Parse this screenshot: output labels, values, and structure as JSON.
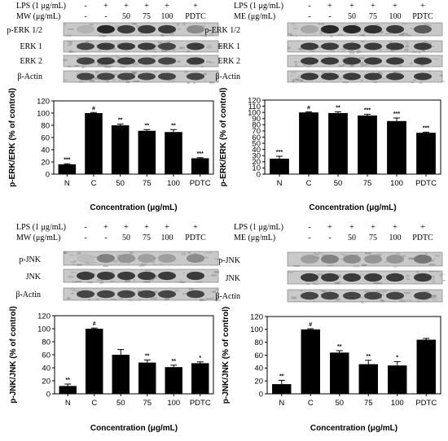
{
  "panels": [
    {
      "id": "erk-mw",
      "header": [
        {
          "label": "LPS (1 μg/mL)",
          "cells": [
            "-",
            "+",
            "+",
            "+",
            "+",
            "+"
          ]
        },
        {
          "label": "MW (μg/mL)",
          "cells": [
            "-",
            "-",
            "50",
            "75",
            "100",
            "PDTC"
          ]
        }
      ],
      "blots": [
        "p-ERK 1/2",
        "ERK 1",
        "ERK 2",
        "β-Actin"
      ],
      "chart_data": {
        "type": "bar",
        "categories": [
          "N",
          "C",
          "50",
          "75",
          "100",
          "PDTC"
        ],
        "values": [
          16,
          100,
          80,
          71,
          69,
          26
        ],
        "errors": [
          1,
          1,
          2,
          2,
          4,
          1
        ],
        "significance": [
          "***",
          "#",
          "**",
          "**",
          "**",
          "***"
        ],
        "xlabel": "Concentration (μg/mL)",
        "ylabel": "p-ERK/ERK (% of control)",
        "ylim": [
          0,
          120
        ],
        "yticks": [
          0,
          20,
          40,
          60,
          80,
          100,
          120
        ]
      }
    },
    {
      "id": "erk-me",
      "header": [
        {
          "label": "LPS (1 μg/mL)",
          "cells": [
            "-",
            "+",
            "+",
            "+",
            "+",
            "+"
          ]
        },
        {
          "label": "ME (μg/mL)",
          "cells": [
            "-",
            "-",
            "50",
            "75",
            "100",
            "PDTC"
          ]
        }
      ],
      "blots": [
        "p-ERK 1/2",
        "ERK 1",
        "ERK 2",
        "β-Actin"
      ],
      "chart_data": {
        "type": "bar",
        "categories": [
          "N",
          "C",
          "50",
          "75",
          "100",
          "PDTC"
        ],
        "values": [
          25,
          100,
          99,
          95,
          86,
          67
        ],
        "errors": [
          4,
          1,
          2,
          2,
          5,
          1
        ],
        "significance": [
          "***",
          "#",
          "**",
          "***",
          "***",
          "***"
        ],
        "xlabel": "Concentration (μg/mL)",
        "ylabel": "p-ERK/ERK (% of control)",
        "ylim": [
          0,
          120
        ],
        "yticks": [
          0,
          10,
          20,
          30,
          40,
          50,
          60,
          70,
          80,
          90,
          100,
          110,
          120
        ]
      }
    },
    {
      "id": "jnk-mw",
      "header": [
        {
          "label": "LPS (1 μg/mL)",
          "cells": [
            "-",
            "+",
            "+",
            "+",
            "+",
            "+"
          ]
        },
        {
          "label": "MW (μg/mL)",
          "cells": [
            "-",
            "-",
            "50",
            "75",
            "100",
            "PDTC"
          ]
        }
      ],
      "blots": [
        "p-JNK",
        "JNK",
        "β-Actin"
      ],
      "chart_data": {
        "type": "bar",
        "categories": [
          "N",
          "C",
          "50",
          "75",
          "100",
          "PDTC"
        ],
        "values": [
          12,
          100,
          60,
          48,
          41,
          47
        ],
        "errors": [
          3,
          1,
          8,
          4,
          3,
          2
        ],
        "significance": [
          "**",
          "#",
          "",
          "**",
          "**",
          "*"
        ],
        "xlabel": "Concentration (μg/mL)",
        "ylabel": "p-JNK/JNK (% of control)",
        "ylim": [
          0,
          120
        ],
        "yticks": [
          0,
          20,
          40,
          60,
          80,
          100,
          120
        ]
      }
    },
    {
      "id": "jnk-me",
      "header": [
        {
          "label": "LPS (1 μg/mL)",
          "cells": [
            "-",
            "+",
            "+",
            "+",
            "+",
            "+"
          ]
        },
        {
          "label": "ME (μg/mL)",
          "cells": [
            "-",
            "-",
            "50",
            "75",
            "100",
            "PDTC"
          ]
        }
      ],
      "blots": [
        "p-JNK",
        "JNK",
        "β-Actin"
      ],
      "chart_data": {
        "type": "bar",
        "categories": [
          "N",
          "C",
          "50",
          "75",
          "100",
          "PDTC"
        ],
        "values": [
          15,
          100,
          64,
          46,
          44,
          84
        ],
        "errors": [
          6,
          1,
          3,
          6,
          6,
          2
        ],
        "significance": [
          "**",
          "#",
          "**",
          "**",
          "*",
          ""
        ],
        "xlabel": "Concentration (μg/mL)",
        "ylabel": "p-JNK/JNK (% of control)",
        "ylim": [
          0,
          120
        ],
        "yticks": [
          0,
          20,
          40,
          60,
          80,
          100,
          120
        ]
      }
    }
  ]
}
